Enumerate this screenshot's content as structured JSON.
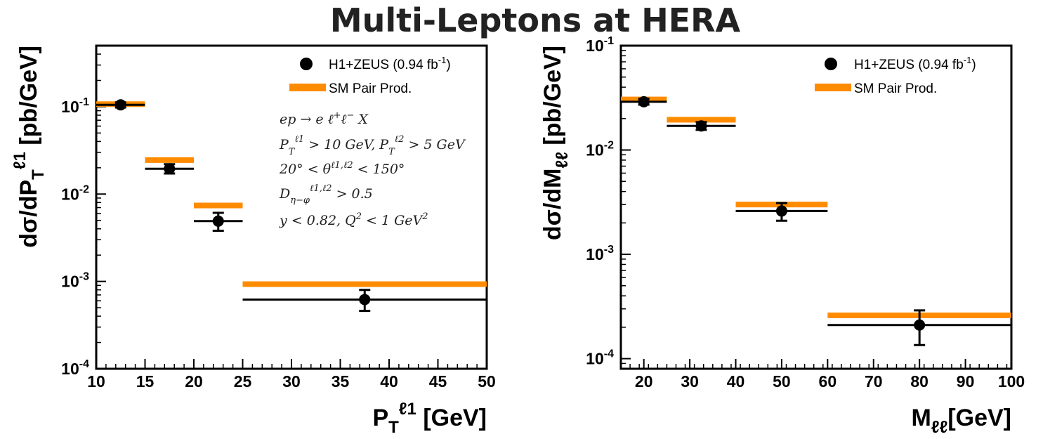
{
  "figure": {
    "title": "Multi-Leptons at HERA"
  },
  "colors": {
    "data": "#000000",
    "sm": "#ff8c00",
    "frame": "#000000"
  },
  "chart_data": [
    {
      "type": "scatter",
      "id": "pt",
      "xlabel": "P_T^{ℓ1} [GeV]",
      "ylabel": "dσ/dP_T^{ℓ1} [pb/GeV]",
      "x_range": [
        10,
        50
      ],
      "x_ticks": [
        10,
        15,
        20,
        25,
        30,
        35,
        40,
        45,
        50
      ],
      "y_scale": "log",
      "y_range": [
        0.0001,
        0.5
      ],
      "y_ticks": [
        {
          "value": 0.1,
          "label_base": "10",
          "label_exp": "-1"
        },
        {
          "value": 0.01,
          "label_base": "10",
          "label_exp": "-2"
        },
        {
          "value": 0.001,
          "label_base": "10",
          "label_exp": "-3"
        },
        {
          "value": 0.0001,
          "label_base": "10",
          "label_exp": "-4"
        }
      ],
      "legend_position": "top-right",
      "series": [
        {
          "name": "H1+ZEUS (0.94 fb-1)",
          "legend_label": "H1+ZEUS (0.94 fb",
          "legend_sup": "-1",
          "legend_close": ")",
          "kind": "data",
          "points": [
            {
              "x": 12.5,
              "xlo": 10,
              "xhi": 15,
              "y": 0.105,
              "ylo": 0.098,
              "yhi": 0.112
            },
            {
              "x": 17.5,
              "xlo": 15,
              "xhi": 20,
              "y": 0.0195,
              "ylo": 0.0172,
              "yhi": 0.022
            },
            {
              "x": 22.5,
              "xlo": 20,
              "xhi": 25,
              "y": 0.0049,
              "ylo": 0.0038,
              "yhi": 0.0061
            },
            {
              "x": 37.5,
              "xlo": 25,
              "xhi": 50,
              "y": 0.00062,
              "ylo": 0.00046,
              "yhi": 0.0008
            }
          ]
        },
        {
          "name": "SM Pair Prod.",
          "legend_label": "SM Pair Prod.",
          "kind": "sm",
          "bins": [
            {
              "xlo": 10,
              "xhi": 15,
              "y": 0.107
            },
            {
              "xlo": 15,
              "xhi": 20,
              "y": 0.0245
            },
            {
              "xlo": 20,
              "xhi": 25,
              "y": 0.0074
            },
            {
              "xlo": 25,
              "xhi": 50,
              "y": 0.00093
            }
          ]
        }
      ],
      "annotations": [
        "ep → e ℓ⁺ℓ⁻ X",
        "P_T^ℓ1 > 10 GeV, P_T^ℓ2 > 5 GeV",
        "20° < θ^ℓ1,ℓ2 < 150°",
        "D_η−φ^ℓ1,ℓ2 > 0.5",
        "y < 0.82, Q² < 1 GeV²"
      ]
    },
    {
      "type": "scatter",
      "id": "mll",
      "xlabel": "M_ℓℓ [GeV]",
      "ylabel": "dσ/dM_ℓℓ [pb/GeV]",
      "x_range": [
        15,
        100
      ],
      "x_ticks": [
        20,
        30,
        40,
        50,
        60,
        70,
        80,
        90,
        100
      ],
      "y_scale": "log",
      "y_range": [
        8e-05,
        0.1
      ],
      "y_ticks": [
        {
          "value": 0.1,
          "label_base": "10",
          "label_exp": "-1"
        },
        {
          "value": 0.01,
          "label_base": "10",
          "label_exp": "-2"
        },
        {
          "value": 0.001,
          "label_base": "10",
          "label_exp": "-3"
        },
        {
          "value": 0.0001,
          "label_base": "10",
          "label_exp": "-4"
        }
      ],
      "legend_position": "top-right",
      "series": [
        {
          "name": "H1+ZEUS (0.94 fb-1)",
          "legend_label": "H1+ZEUS (0.94 fb",
          "legend_sup": "-1",
          "legend_close": ")",
          "kind": "data",
          "points": [
            {
              "x": 20,
              "xlo": 15,
              "xhi": 25,
              "y": 0.029,
              "ylo": 0.0272,
              "yhi": 0.031
            },
            {
              "x": 32.5,
              "xlo": 25,
              "xhi": 40,
              "y": 0.017,
              "ylo": 0.0156,
              "yhi": 0.0185
            },
            {
              "x": 50,
              "xlo": 40,
              "xhi": 60,
              "y": 0.0026,
              "ylo": 0.0021,
              "yhi": 0.0031
            },
            {
              "x": 80,
              "xlo": 60,
              "xhi": 100,
              "y": 0.00021,
              "ylo": 0.000135,
              "yhi": 0.00029
            }
          ]
        },
        {
          "name": "SM Pair Prod.",
          "legend_label": "SM Pair Prod.",
          "kind": "sm",
          "bins": [
            {
              "xlo": 15,
              "xhi": 25,
              "y": 0.0305
            },
            {
              "xlo": 25,
              "xhi": 40,
              "y": 0.0195
            },
            {
              "xlo": 40,
              "xhi": 60,
              "y": 0.003
            },
            {
              "xlo": 60,
              "xhi": 100,
              "y": 0.00026
            }
          ]
        }
      ],
      "annotations": []
    }
  ]
}
